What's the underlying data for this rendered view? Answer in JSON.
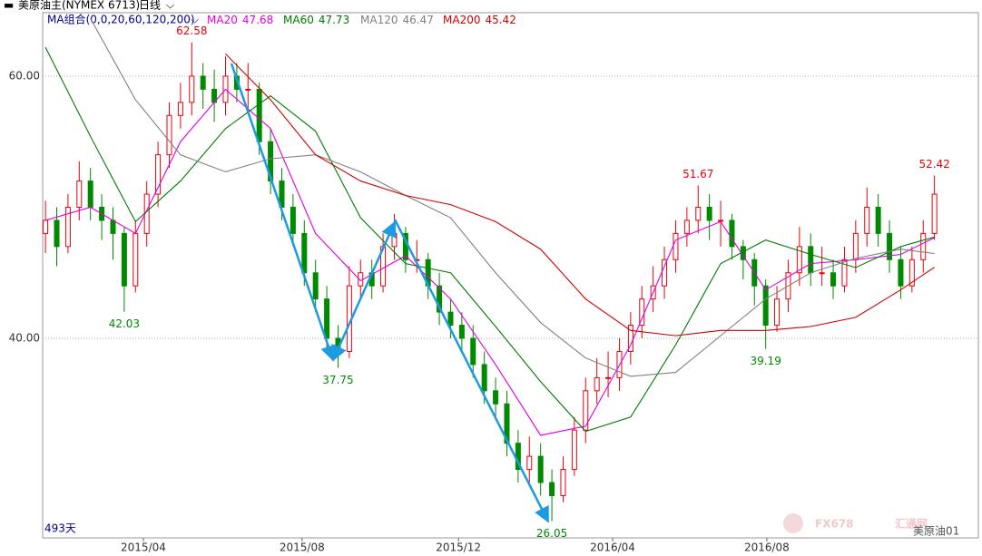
{
  "header": {
    "title": "美原油主(NYMEX 6713)",
    "period": "日线",
    "ma_group": "MA组合(0,0,20,60,120,200)",
    "bar_count": "493天",
    "symbol": "美原油01",
    "watermark": "FX678",
    "watermark_cn": "汇通网"
  },
  "chart_data": {
    "type": "candlestick",
    "xlim": [
      -0.25,
      82.9
    ],
    "ylim": [
      24.78,
      64.84
    ],
    "xticks": [
      {
        "value": 8.7,
        "label": "2015/04"
      },
      {
        "value": 22.8,
        "label": "2015/08"
      },
      {
        "value": 36.7,
        "label": "2015/12"
      },
      {
        "value": 50.4,
        "label": "2016/04"
      },
      {
        "value": 64.1,
        "label": "2016/08"
      }
    ],
    "yticks": [
      {
        "value": 60,
        "label": "60.00"
      },
      {
        "value": 40,
        "label": "40.00"
      }
    ],
    "up_color": "#e8000b",
    "down_color": "#008a00",
    "ohlc": [
      [
        48,
        50.5,
        46.5,
        49
      ],
      [
        49,
        50,
        45.5,
        47
      ],
      [
        47,
        51,
        46.5,
        50
      ],
      [
        50,
        53.5,
        49,
        52
      ],
      [
        52,
        53,
        49,
        50
      ],
      [
        50,
        51,
        47.5,
        49
      ],
      [
        49,
        50,
        46,
        48
      ],
      [
        48,
        48.5,
        42.03,
        44
      ],
      [
        44,
        49,
        43.5,
        48
      ],
      [
        48,
        52,
        47,
        51
      ],
      [
        51,
        55,
        50,
        54
      ],
      [
        54,
        58,
        53,
        57
      ],
      [
        57,
        59.5,
        56,
        58
      ],
      [
        58,
        62.58,
        57,
        60
      ],
      [
        60,
        61,
        57.5,
        59
      ],
      [
        59,
        60.5,
        56.5,
        58
      ],
      [
        58,
        61.5,
        57,
        60
      ],
      [
        60,
        61,
        58,
        59
      ],
      [
        59,
        61,
        57.5,
        59
      ],
      [
        59,
        59.5,
        54,
        55
      ],
      [
        55,
        56,
        51,
        52
      ],
      [
        52,
        53,
        49,
        50
      ],
      [
        50,
        51,
        47,
        48
      ],
      [
        48,
        49,
        44,
        45
      ],
      [
        45,
        46,
        42,
        43
      ],
      [
        43,
        44,
        39,
        40
      ],
      [
        40,
        41,
        37.75,
        39
      ],
      [
        39,
        45.5,
        38.5,
        44
      ],
      [
        44,
        46,
        43,
        45
      ],
      [
        45,
        46,
        43,
        44
      ],
      [
        44,
        48,
        43.5,
        47
      ],
      [
        47,
        49.5,
        46,
        48
      ],
      [
        48,
        48.5,
        45,
        46
      ],
      [
        46,
        47.5,
        45,
        46
      ],
      [
        46,
        46.5,
        43,
        44
      ],
      [
        44,
        45,
        41,
        42
      ],
      [
        42,
        43,
        40,
        41
      ],
      [
        41,
        42,
        39,
        40
      ],
      [
        40,
        41,
        37,
        38
      ],
      [
        38,
        39,
        35,
        36
      ],
      [
        36,
        37,
        34,
        35
      ],
      [
        35,
        36,
        31,
        32
      ],
      [
        32,
        33,
        29,
        30
      ],
      [
        30,
        32.5,
        29,
        31
      ],
      [
        31,
        32,
        28,
        29
      ],
      [
        29,
        30,
        26.05,
        28
      ],
      [
        28,
        31,
        27.5,
        30
      ],
      [
        30,
        34,
        29.5,
        33
      ],
      [
        33,
        37,
        32,
        36
      ],
      [
        36,
        38.5,
        35,
        37
      ],
      [
        37,
        39,
        35.5,
        37
      ],
      [
        37,
        40,
        36,
        39
      ],
      [
        39,
        42,
        38,
        41
      ],
      [
        41,
        44,
        40,
        43
      ],
      [
        43,
        45.5,
        42,
        44
      ],
      [
        44,
        47,
        43,
        46
      ],
      [
        46,
        49,
        45,
        48
      ],
      [
        48,
        50,
        47,
        49
      ],
      [
        49,
        51.67,
        48,
        50
      ],
      [
        50,
        51,
        47.5,
        49
      ],
      [
        49,
        50.5,
        47,
        49
      ],
      [
        49,
        49.5,
        46,
        47
      ],
      [
        47,
        47.5,
        44.5,
        46
      ],
      [
        46,
        46.5,
        42.5,
        44
      ],
      [
        44,
        44.5,
        39.19,
        41
      ],
      [
        41,
        44,
        40.5,
        43
      ],
      [
        43,
        46,
        42,
        45
      ],
      [
        45,
        48.5,
        44,
        47
      ],
      [
        47,
        48,
        44,
        45
      ],
      [
        45,
        47,
        44,
        45
      ],
      [
        45,
        46,
        43,
        44
      ],
      [
        44,
        47,
        43.5,
        46
      ],
      [
        46,
        49,
        45,
        48
      ],
      [
        48,
        51.5,
        47,
        50
      ],
      [
        50,
        51,
        47,
        48
      ],
      [
        48,
        49,
        45,
        46
      ],
      [
        46,
        47,
        43,
        44
      ],
      [
        44,
        47,
        43.5,
        46
      ],
      [
        46,
        49,
        45,
        48
      ],
      [
        48,
        52.42,
        47.5,
        51
      ]
    ],
    "ma_x": [
      0,
      4,
      8,
      12,
      16,
      20,
      24,
      28,
      32,
      36,
      40,
      44,
      48,
      52,
      56,
      60,
      64,
      68,
      72,
      76,
      79
    ],
    "series": [
      {
        "name": "MA20",
        "last": 47.68,
        "color": "#e000e0",
        "values": [
          49,
          50,
          48,
          55,
          59,
          56,
          48,
          44.4,
          46.3,
          43,
          38,
          32.6,
          33.3,
          39.5,
          47.5,
          48.9,
          43.7,
          45.7,
          46,
          46.4,
          47.68
        ]
      },
      {
        "name": "MA60",
        "last": 47.73,
        "color": "#007a00",
        "values": [
          62.2,
          55.4,
          48.9,
          52,
          56,
          58.5,
          55.8,
          49.2,
          45.7,
          45,
          40.9,
          36.7,
          32.9,
          34,
          39.5,
          45.7,
          47.5,
          46.4,
          45.4,
          47,
          47.73
        ]
      },
      {
        "name": "MA120",
        "last": 46.47,
        "color": "#808080",
        "values": [
          null,
          64.4,
          58.2,
          54,
          52.7,
          53.7,
          54,
          52.7,
          50.9,
          49.2,
          45,
          41.2,
          38.5,
          37.1,
          37.4,
          40.2,
          43,
          45,
          46.1,
          46.8,
          46.47
        ]
      },
      {
        "name": "MA200",
        "last": 45.42,
        "color": "#d00000",
        "values": [
          null,
          null,
          null,
          null,
          61.7,
          58.2,
          54,
          52,
          50.9,
          50.2,
          48.9,
          46.8,
          43,
          40.6,
          40.2,
          40.6,
          40.6,
          40.9,
          41.6,
          43.7,
          45.42
        ]
      }
    ],
    "annotations": [
      {
        "x": 13,
        "value": 62.58
      },
      {
        "x": 7,
        "value": 42.03
      },
      {
        "x": 26,
        "value": 37.75
      },
      {
        "x": 45,
        "value": 26.05
      },
      {
        "x": 58,
        "value": 51.67
      },
      {
        "x": 64,
        "value": 39.19
      },
      {
        "x": 79,
        "value": 52.42
      }
    ]
  }
}
